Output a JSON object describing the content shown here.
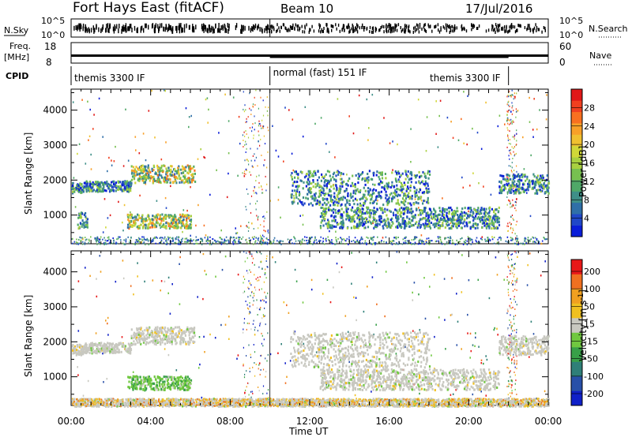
{
  "header": {
    "station": "Fort Hays East (fitACF)",
    "beam": "Beam 10",
    "date": "17/Jul/2016"
  },
  "left_labels": {
    "nsky": "N.Sky",
    "nsky_top": "10^5",
    "nsky_bot": "10^0",
    "freq": "Freq.",
    "freq_unit": "[MHz]",
    "freq_top": "18",
    "freq_bot": "8",
    "cpid": "CPID"
  },
  "right_labels": {
    "nsearch": "N.Search",
    "nsearch_top": "10^5",
    "nsearch_bot": "10^0",
    "nave": "Nave",
    "nave_top": "60",
    "nave_bot": "0"
  },
  "cpid_segments": [
    {
      "label": "themis 3300 IF",
      "start_hour": 0.0,
      "end_hour": 10.0
    },
    {
      "label": "normal (fast) 151 IF",
      "start_hour": 10.0,
      "end_hour": 22.0
    },
    {
      "label": "themis 3300 IF",
      "start_hour": 22.0,
      "end_hour": 24.0
    }
  ],
  "chart_data": [
    {
      "type": "heatmap",
      "name": "power",
      "ylabel": "Slant Range [km]",
      "ylim": [
        180,
        4600
      ],
      "yticks": [
        1000,
        2000,
        3000,
        4000
      ],
      "xlim": [
        0,
        24
      ],
      "colorbar": {
        "label": "Power [dB]",
        "range": [
          0,
          32
        ],
        "ticks": [
          "4",
          "8",
          "12",
          "16",
          "20",
          "24",
          "28"
        ],
        "colors": [
          "#0a1dd8",
          "#2047c8",
          "#2f6fa8",
          "#3f8f88",
          "#4fa868",
          "#77c050",
          "#a8d040",
          "#d0d838",
          "#f0c030",
          "#f8a028",
          "#f87020",
          "#f04020",
          "#e01818"
        ]
      },
      "bands": [
        {
          "h0": 0.0,
          "h1": 0.6,
          "r0": 1650,
          "r1": 1950
        },
        {
          "h0": 0.6,
          "h1": 3.0,
          "r0": 1700,
          "r1": 2000
        },
        {
          "h0": 3.0,
          "h1": 6.2,
          "r0": 1950,
          "r1": 2450
        },
        {
          "h0": 2.8,
          "h1": 6.0,
          "r0": 650,
          "r1": 1050
        },
        {
          "h0": 0.3,
          "h1": 0.8,
          "r0": 650,
          "r1": 1100
        },
        {
          "h0": 11.0,
          "h1": 18.0,
          "r0": 1300,
          "r1": 2300
        },
        {
          "h0": 12.5,
          "h1": 21.5,
          "r0": 650,
          "r1": 1250
        },
        {
          "h0": 21.5,
          "h1": 24.0,
          "r0": 1650,
          "r1": 2200
        }
      ]
    },
    {
      "type": "heatmap",
      "name": "velocity",
      "ylabel": "Slant Range [km]",
      "ylim": [
        180,
        4600
      ],
      "yticks": [
        1000,
        2000,
        3000,
        4000
      ],
      "xlim": [
        0,
        24
      ],
      "xticks": [
        "00:00",
        "04:00",
        "08:00",
        "12:00",
        "16:00",
        "20:00",
        "00:00"
      ],
      "xlabel": "Time UT",
      "colorbar": {
        "label": "Velocity [m s^-1]",
        "range": [
          -250,
          250
        ],
        "ticks": [
          "200",
          "100",
          "50",
          "15",
          "-15",
          "-50",
          "-100",
          "-200"
        ],
        "colors": [
          "#1020c8",
          "#2850a8",
          "#2f7f78",
          "#38a048",
          "#70c840",
          "#c8c8c0",
          "#f0c020",
          "#f0a020",
          "#f07020",
          "#e81818"
        ]
      },
      "bands": [
        {
          "h0": 0.0,
          "h1": 0.6,
          "r0": 1650,
          "r1": 1950
        },
        {
          "h0": 0.6,
          "h1": 3.0,
          "r0": 1700,
          "r1": 2000
        },
        {
          "h0": 3.0,
          "h1": 6.2,
          "r0": 1950,
          "r1": 2450
        },
        {
          "h0": 2.8,
          "h1": 6.0,
          "r0": 650,
          "r1": 1050
        },
        {
          "h0": 11.0,
          "h1": 18.0,
          "r0": 1300,
          "r1": 2300
        },
        {
          "h0": 12.5,
          "h1": 21.5,
          "r0": 650,
          "r1": 1250
        },
        {
          "h0": 21.5,
          "h1": 24.0,
          "r0": 1650,
          "r1": 2200
        },
        {
          "h0": 0.0,
          "h1": 24.0,
          "r0": 180,
          "r1": 400
        }
      ]
    }
  ]
}
